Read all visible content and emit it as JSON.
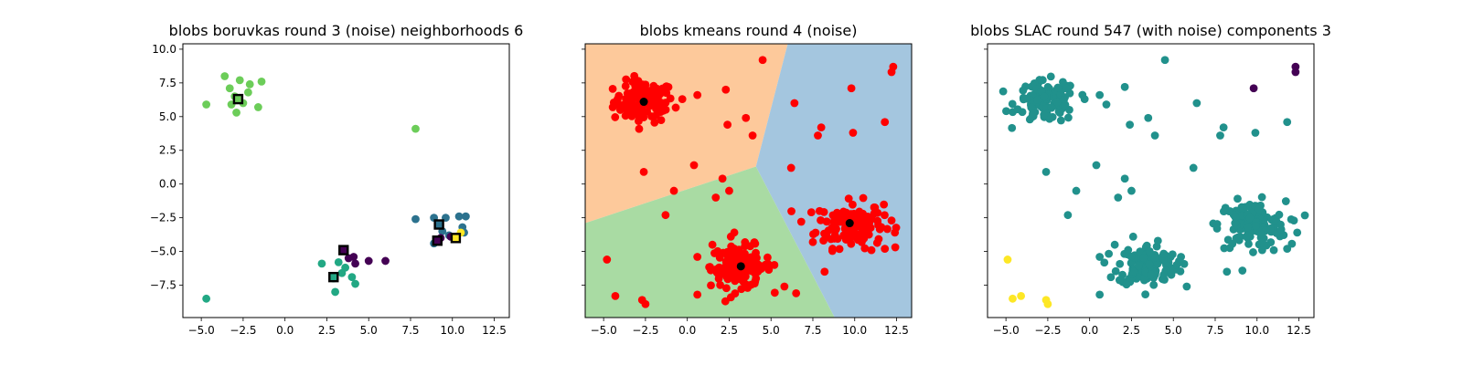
{
  "chart_data": [
    {
      "type": "scatter",
      "title": "blobs boruvkas round 3 (noise) neighborhoods 6",
      "xlabel": "",
      "ylabel": "",
      "xlim": [
        -6.1,
        13.4
      ],
      "ylim": [
        -9.9,
        10.4
      ],
      "xticks": [
        -5.0,
        -2.5,
        0.0,
        2.5,
        5.0,
        7.5,
        10.0,
        12.5
      ],
      "xtick_labels": [
        "−5.0",
        "−2.5",
        "0.0",
        "2.5",
        "5.0",
        "7.5",
        "10.0",
        "12.5"
      ],
      "yticks": [
        -7.5,
        -5.0,
        -2.5,
        0.0,
        2.5,
        5.0,
        7.5,
        10.0
      ],
      "ytick_labels": [
        "−7.5",
        "−5.0",
        "−2.5",
        "0.0",
        "2.5",
        "5.0",
        "7.5",
        "10.0"
      ],
      "show_ytick_labels": true,
      "series": [
        {
          "color": "#6ccd59",
          "points": [
            [
              -3.6,
              8.0
            ],
            [
              -3.3,
              7.1
            ],
            [
              -2.7,
              7.7
            ],
            [
              -2.1,
              7.4
            ],
            [
              -1.4,
              7.6
            ],
            [
              -2.2,
              6.8
            ],
            [
              -3.0,
              6.5
            ],
            [
              -2.5,
              6.0
            ],
            [
              -3.2,
              5.9
            ],
            [
              -2.9,
              5.3
            ],
            [
              -1.6,
              5.7
            ],
            [
              -4.7,
              5.9
            ],
            [
              7.8,
              4.1
            ]
          ]
        },
        {
          "color": "#2c728e",
          "points": [
            [
              7.8,
              -2.6
            ],
            [
              8.9,
              -2.5
            ],
            [
              9.6,
              -2.5
            ],
            [
              10.4,
              -2.4
            ],
            [
              10.8,
              -2.4
            ],
            [
              10.6,
              -3.2
            ],
            [
              9.4,
              -3.5
            ],
            [
              9.8,
              -3.8
            ],
            [
              8.9,
              -4.4
            ],
            [
              10.7,
              -3.6
            ]
          ]
        },
        {
          "color": "#440154",
          "points": [
            [
              9.3,
              -4.0
            ],
            [
              9.9,
              -3.9
            ],
            [
              3.5,
              -4.9
            ],
            [
              4.1,
              -5.4
            ],
            [
              3.8,
              -5.5
            ],
            [
              4.2,
              -5.9
            ],
            [
              5.0,
              -5.7
            ],
            [
              6.0,
              -5.7
            ]
          ]
        },
        {
          "color": "#fde725",
          "points": [
            [
              10.5,
              -3.6
            ],
            [
              10.2,
              -3.9
            ]
          ]
        },
        {
          "color": "#22a884",
          "points": [
            [
              2.2,
              -5.9
            ],
            [
              3.2,
              -5.8
            ],
            [
              3.6,
              -6.2
            ],
            [
              3.4,
              -6.6
            ],
            [
              4.0,
              -6.9
            ],
            [
              2.9,
              -7.0
            ],
            [
              4.2,
              -7.4
            ],
            [
              3.0,
              -8.0
            ],
            [
              -4.7,
              -8.5
            ]
          ]
        }
      ],
      "centers": [
        {
          "xy": [
            -2.8,
            6.3
          ],
          "color": "#6ccd59"
        },
        {
          "xy": [
            9.2,
            -3.0
          ],
          "color": "#2c728e"
        },
        {
          "xy": [
            9.1,
            -4.2
          ],
          "color": "#440154"
        },
        {
          "xy": [
            10.2,
            -4.0
          ],
          "color": "#fde725"
        },
        {
          "xy": [
            3.5,
            -4.9
          ],
          "color": "#440154"
        },
        {
          "xy": [
            2.9,
            -6.9
          ],
          "color": "#22a884"
        }
      ]
    },
    {
      "type": "scatter",
      "title": "blobs kmeans round 4 (noise)",
      "xlabel": "",
      "ylabel": "",
      "xlim": [
        -6.1,
        13.4
      ],
      "ylim": [
        -9.9,
        10.4
      ],
      "xticks": [
        -5.0,
        -2.5,
        0.0,
        2.5,
        5.0,
        7.5,
        10.0,
        12.5
      ],
      "xtick_labels": [
        "−5.0",
        "−2.5",
        "0.0",
        "2.5",
        "5.0",
        "7.5",
        "10.0",
        "12.5"
      ],
      "yticks": [
        -7.5,
        -5.0,
        -2.5,
        0.0,
        2.5,
        5.0,
        7.5,
        10.0
      ],
      "ytick_labels": [],
      "show_ytick_labels": false,
      "regions": [
        {
          "color": "#fdc99b",
          "polygon": [
            [
              -6.1,
              10.4
            ],
            [
              6.0,
              10.4
            ],
            [
              4.1,
              1.3
            ],
            [
              -6.1,
              -2.9
            ]
          ]
        },
        {
          "color": "#a4c6df",
          "polygon": [
            [
              6.0,
              10.4
            ],
            [
              13.4,
              10.4
            ],
            [
              13.4,
              -9.9
            ],
            [
              8.8,
              -9.9
            ],
            [
              4.1,
              1.3
            ]
          ]
        },
        {
          "color": "#a9dba3",
          "polygon": [
            [
              -6.1,
              -2.9
            ],
            [
              4.1,
              1.3
            ],
            [
              8.8,
              -9.9
            ],
            [
              -6.1,
              -9.9
            ]
          ]
        }
      ],
      "clusters": [
        {
          "center": [
            -2.6,
            6.1
          ],
          "spread": 0.9,
          "count": 110
        },
        {
          "center": [
            9.7,
            -3.0
          ],
          "spread": 1.0,
          "count": 140
        },
        {
          "center": [
            3.2,
            -6.1
          ],
          "spread": 0.9,
          "count": 130
        }
      ],
      "outliers": [
        [
          4.5,
          9.2
        ],
        [
          12.3,
          8.7
        ],
        [
          9.8,
          7.1
        ],
        [
          12.2,
          8.3
        ],
        [
          2.3,
          7.0
        ],
        [
          -0.3,
          6.3
        ],
        [
          0.6,
          6.6
        ],
        [
          6.4,
          6.0
        ],
        [
          9.9,
          3.8
        ],
        [
          11.8,
          4.6
        ],
        [
          3.5,
          4.9
        ],
        [
          3.9,
          3.6
        ],
        [
          8.0,
          4.2
        ],
        [
          7.8,
          3.6
        ],
        [
          2.4,
          4.4
        ],
        [
          6.2,
          1.2
        ],
        [
          0.4,
          1.4
        ],
        [
          -2.6,
          0.9
        ],
        [
          -0.8,
          -0.5
        ],
        [
          2.1,
          0.4
        ],
        [
          2.5,
          -0.5
        ],
        [
          -1.3,
          -2.3
        ],
        [
          1.7,
          -1.0
        ],
        [
          -4.8,
          -5.6
        ],
        [
          -2.7,
          -8.6
        ],
        [
          -4.3,
          -8.3
        ],
        [
          -2.5,
          -8.9
        ],
        [
          0.6,
          -8.2
        ],
        [
          2.6,
          -8.4
        ],
        [
          3.6,
          -7.7
        ],
        [
          6.5,
          -8.1
        ],
        [
          1.5,
          -4.5
        ],
        [
          0.6,
          -5.4
        ],
        [
          2.6,
          -3.9
        ],
        [
          5.2,
          -6.0
        ],
        [
          5.8,
          -7.6
        ],
        [
          8.2,
          -6.5
        ],
        [
          12.2,
          -2.7
        ],
        [
          12.4,
          -3.6
        ],
        [
          11.8,
          -4.8
        ],
        [
          11.0,
          -4.9
        ],
        [
          7.5,
          -4.3
        ],
        [
          4.1,
          -7.0
        ],
        [
          1.9,
          -6.8
        ]
      ],
      "centers": [
        [
          -2.6,
          6.1
        ],
        [
          9.7,
          -2.9
        ],
        [
          3.2,
          -6.1
        ]
      ]
    },
    {
      "type": "scatter",
      "title": "blobs SLAC round 547 (with noise) components 3",
      "xlabel": "",
      "ylabel": "",
      "xlim": [
        -6.1,
        13.4
      ],
      "ylim": [
        -9.9,
        10.4
      ],
      "xticks": [
        -5.0,
        -2.5,
        0.0,
        2.5,
        5.0,
        7.5,
        10.0,
        12.5
      ],
      "xtick_labels": [
        "−5.0",
        "−2.5",
        "0.0",
        "2.5",
        "5.0",
        "7.5",
        "10.0",
        "12.5"
      ],
      "yticks": [
        -7.5,
        -5.0,
        -2.5,
        0.0,
        2.5,
        5.0,
        7.5,
        10.0
      ],
      "ytick_labels": [],
      "show_ytick_labels": false,
      "main_color": "#21918c",
      "clusters": [
        {
          "center": [
            -2.6,
            6.1
          ],
          "spread": 0.9,
          "count": 110
        },
        {
          "center": [
            9.7,
            -3.0
          ],
          "spread": 1.0,
          "count": 140
        },
        {
          "center": [
            3.5,
            -6.0
          ],
          "spread": 0.9,
          "count": 130
        }
      ],
      "outliers": [
        [
          4.5,
          9.2
        ],
        [
          2.1,
          7.2
        ],
        [
          -0.3,
          6.3
        ],
        [
          0.6,
          6.6
        ],
        [
          1.0,
          5.9
        ],
        [
          6.4,
          6.0
        ],
        [
          9.9,
          3.8
        ],
        [
          11.8,
          4.6
        ],
        [
          3.5,
          4.9
        ],
        [
          3.9,
          3.6
        ],
        [
          8.0,
          4.2
        ],
        [
          7.8,
          3.6
        ],
        [
          2.4,
          4.4
        ],
        [
          6.2,
          1.2
        ],
        [
          0.4,
          1.4
        ],
        [
          -2.6,
          0.9
        ],
        [
          -0.8,
          -0.5
        ],
        [
          2.1,
          0.4
        ],
        [
          2.5,
          -0.5
        ],
        [
          -1.3,
          -2.3
        ],
        [
          1.7,
          -1.0
        ],
        [
          0.6,
          -5.4
        ],
        [
          1.5,
          -4.5
        ],
        [
          2.6,
          -3.9
        ],
        [
          5.2,
          -6.0
        ],
        [
          5.8,
          -7.6
        ],
        [
          8.2,
          -6.5
        ],
        [
          12.2,
          -2.7
        ],
        [
          12.4,
          -3.6
        ],
        [
          11.8,
          -4.8
        ],
        [
          11.0,
          -4.9
        ],
        [
          0.6,
          -8.2
        ]
      ],
      "extra_series": [
        {
          "color": "#440154",
          "points": [
            [
              9.8,
              7.1
            ],
            [
              12.3,
              8.7
            ],
            [
              12.3,
              8.3
            ]
          ]
        },
        {
          "color": "#fde725",
          "points": [
            [
              -4.9,
              -5.6
            ],
            [
              -4.6,
              -8.5
            ],
            [
              -4.1,
              -8.3
            ],
            [
              -2.6,
              -8.6
            ],
            [
              -2.5,
              -8.9
            ]
          ]
        }
      ]
    }
  ]
}
